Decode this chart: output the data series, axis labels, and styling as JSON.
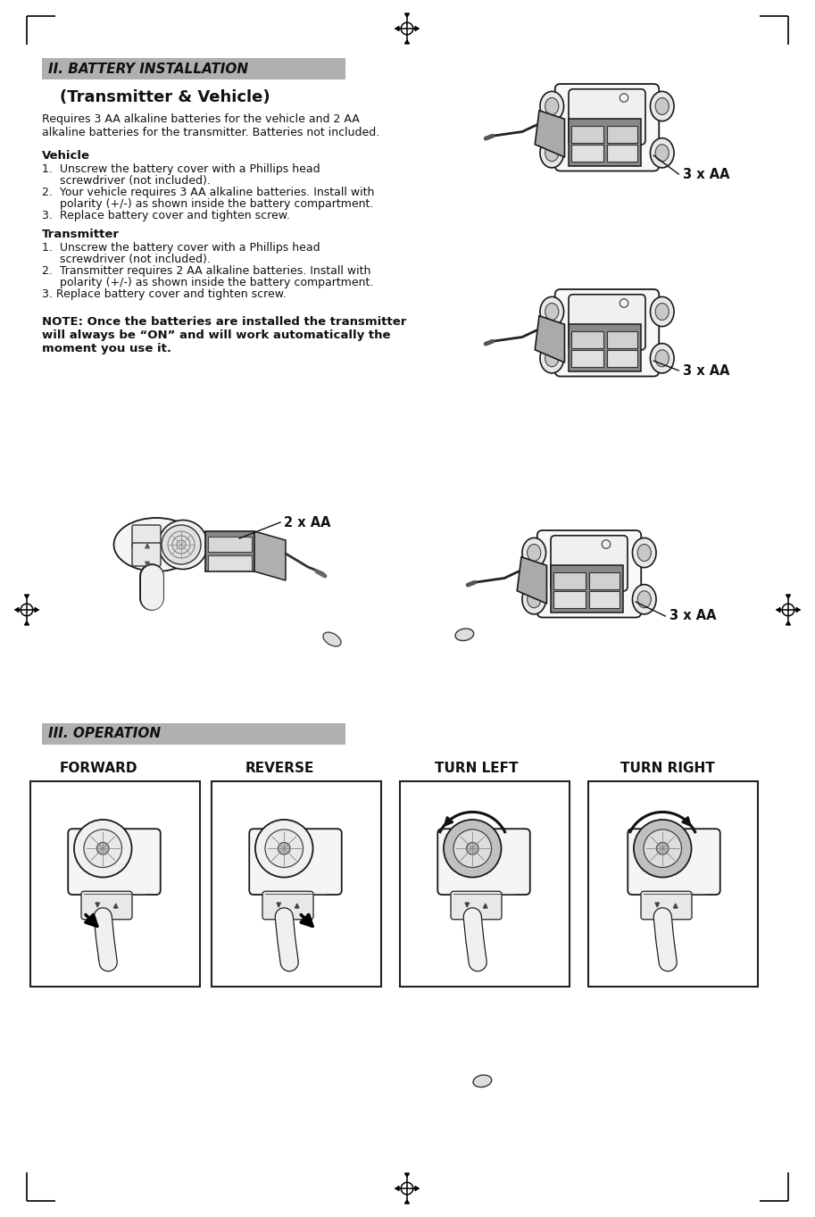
{
  "bg_color": "#ffffff",
  "title_ii": "II. BATTERY INSTALLATION",
  "subtitle": "(Transmitter & Vehicle)",
  "intro_text_1": "Requires 3 AA alkaline batteries for the vehicle and 2 AA",
  "intro_text_2": "alkaline batteries for the transmitter. Batteries not included.",
  "vehicle_header": "Vehicle",
  "vehicle_step1": "1.  Unscrew the battery cover with a Phillips head",
  "vehicle_step1b": "     screwdriver (not included).",
  "vehicle_step2": "2.  Your vehicle requires 3 AA alkaline batteries. Install with",
  "vehicle_step2b": "     polarity (+/-) as shown inside the battery compartment.",
  "vehicle_step3": "3.  Replace battery cover and tighten screw.",
  "transmitter_header": "Transmitter",
  "tx_step1": "1.  Unscrew the battery cover with a Phillips head",
  "tx_step1b": "     screwdriver (not included).",
  "tx_step2": "2.  Transmitter requires 2 AA alkaline batteries. Install with",
  "tx_step2b": "     polarity (+/-) as shown inside the battery compartment.",
  "tx_step3": "3. Replace battery cover and tighten screw.",
  "note_text": "NOTE: Once the batteries are installed the transmitter\nwill always be “ON” and will work automatically the\nmoment you use it.",
  "label_3xaa": "3 x AA",
  "label_2xaa": "2 x AA",
  "title_iii": "III. OPERATION",
  "op_labels": [
    "FORWARD",
    "REVERSE",
    "TURN LEFT",
    "TURN RIGHT"
  ],
  "header_bg": "#b0b0b0",
  "header_text_color": "#111111",
  "body_fs": 9.0,
  "header_fs": 9.5,
  "subtitle_fs": 13.0,
  "section_fs": 11.0,
  "op_label_fs": 11.0,
  "label_fs": 9.5,
  "note_fs": 9.5
}
